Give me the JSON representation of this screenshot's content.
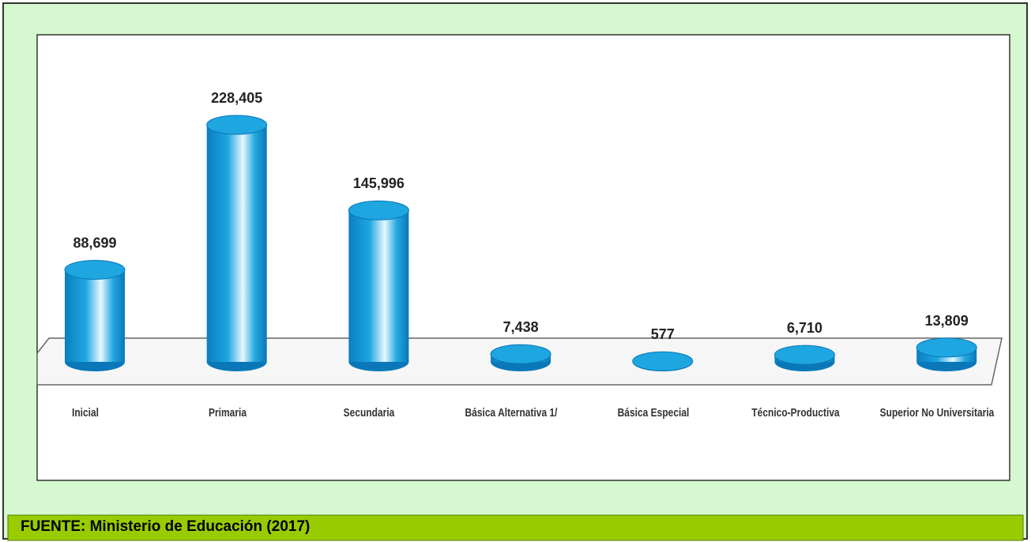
{
  "chart_data": {
    "type": "bar3d",
    "categories": [
      "Inicial",
      "Primaria",
      "Secundaria",
      "Básica Alternativa 1/",
      "Básica Especial",
      "Técnico-Productiva",
      "Superior No Universitaria"
    ],
    "values": [
      88699,
      228405,
      145996,
      7438,
      577,
      6710,
      13809
    ],
    "value_labels": [
      "88,699",
      "228,405",
      "145,996",
      "7,438",
      "577",
      "6,710",
      "13,809"
    ],
    "color": "#1ea6e0",
    "source": "FUENTE: Ministerio de Educación (2017)"
  }
}
